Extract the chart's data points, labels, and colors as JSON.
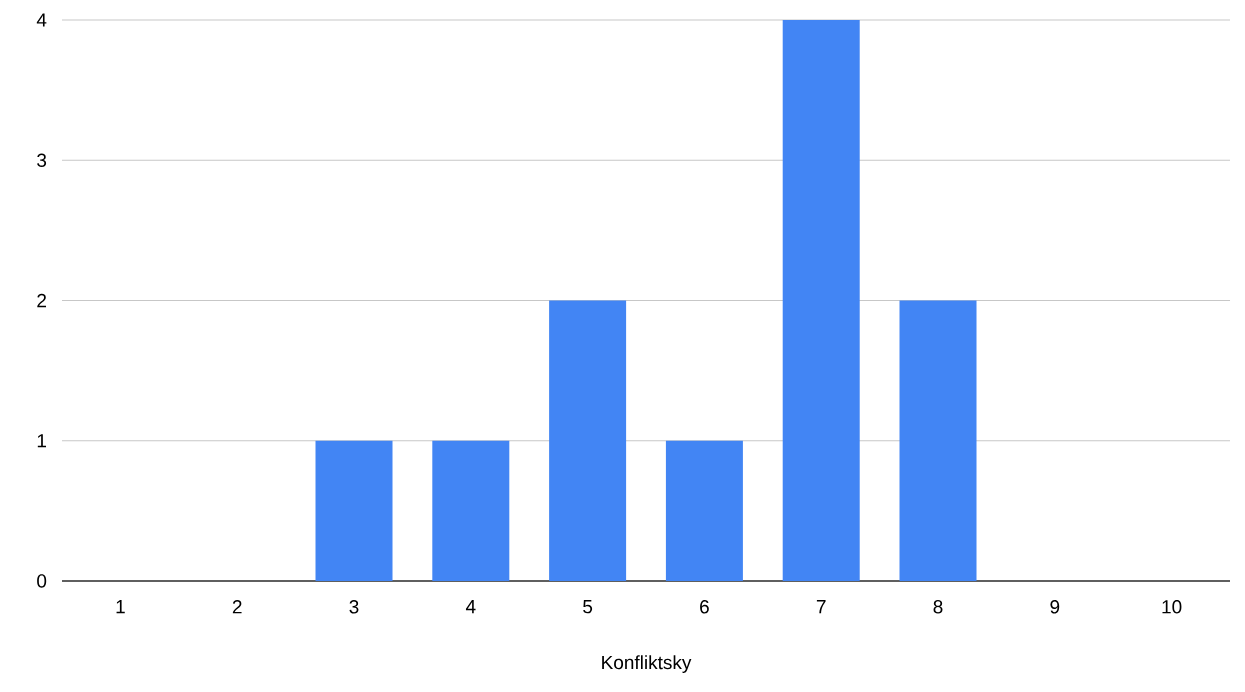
{
  "chart_data": {
    "type": "bar",
    "xlabel": "Konfliktsky",
    "categories": [
      "1",
      "2",
      "3",
      "4",
      "5",
      "6",
      "7",
      "8",
      "9",
      "10"
    ],
    "values": [
      0,
      0,
      1,
      1,
      2,
      1,
      4,
      2,
      0,
      0
    ],
    "color": "#4285f4",
    "ylim": [
      0,
      4
    ],
    "yticks": [
      0,
      1,
      2,
      3,
      4
    ],
    "grid": "y"
  }
}
